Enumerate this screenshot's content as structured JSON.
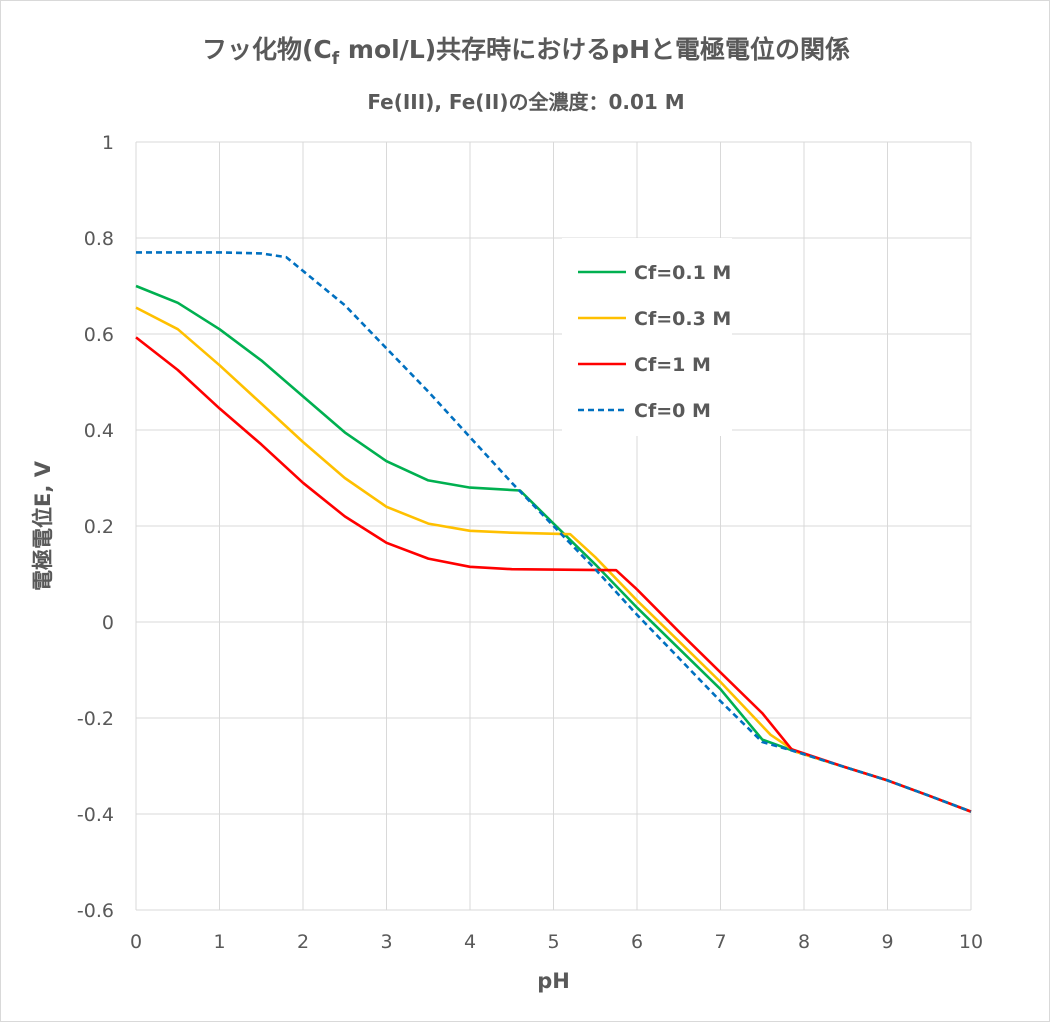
{
  "chart_data": {
    "type": "line",
    "title": "フッ化物(C",
    "title_sub": "f",
    "title_rest": " mol/L)共存時におけるpHと電極電位の関係",
    "subtitle": "Fe(III), Fe(II)の全濃度：0.01 M",
    "xlabel": "pH",
    "ylabel": "電極電位E, V",
    "xlim": [
      0,
      10
    ],
    "ylim": [
      -0.6,
      1
    ],
    "xticks": [
      "0",
      "1",
      "2",
      "3",
      "4",
      "5",
      "6",
      "7",
      "8",
      "9",
      "10"
    ],
    "yticks": [
      "1",
      "0.8",
      "0.6",
      "0.4",
      "0.2",
      "0",
      "-0.2",
      "-0.4",
      "-0.6"
    ],
    "legend_position": "upper-right-inside",
    "series": [
      {
        "name": "Cf=0.1 M",
        "color": "#00b050",
        "dash": "solid",
        "points": [
          [
            0,
            0.7
          ],
          [
            0.5,
            0.665
          ],
          [
            1,
            0.61
          ],
          [
            1.5,
            0.545
          ],
          [
            2,
            0.47
          ],
          [
            2.5,
            0.395
          ],
          [
            3,
            0.335
          ],
          [
            3.5,
            0.295
          ],
          [
            4,
            0.28
          ],
          [
            4.6,
            0.274
          ],
          [
            5,
            0.205
          ],
          [
            5.5,
            0.12
          ],
          [
            6,
            0.03
          ],
          [
            6.5,
            -0.055
          ],
          [
            7,
            -0.14
          ],
          [
            7.5,
            -0.245
          ],
          [
            7.9,
            -0.27
          ],
          [
            8.5,
            -0.303
          ],
          [
            9,
            -0.33
          ],
          [
            9.5,
            -0.362
          ],
          [
            10,
            -0.395
          ]
        ]
      },
      {
        "name": "Cf=0.3 M",
        "color": "#ffc000",
        "dash": "solid",
        "points": [
          [
            0,
            0.655
          ],
          [
            0.5,
            0.61
          ],
          [
            1,
            0.535
          ],
          [
            1.5,
            0.455
          ],
          [
            2,
            0.375
          ],
          [
            2.5,
            0.3
          ],
          [
            3,
            0.24
          ],
          [
            3.5,
            0.205
          ],
          [
            4,
            0.19
          ],
          [
            4.5,
            0.186
          ],
          [
            5.2,
            0.183
          ],
          [
            5.5,
            0.135
          ],
          [
            6,
            0.045
          ],
          [
            6.5,
            -0.04
          ],
          [
            7,
            -0.125
          ],
          [
            7.6,
            -0.235
          ],
          [
            7.9,
            -0.27
          ],
          [
            8.5,
            -0.303
          ],
          [
            9,
            -0.33
          ],
          [
            9.5,
            -0.362
          ],
          [
            10,
            -0.395
          ]
        ]
      },
      {
        "name": "Cf=1 M",
        "color": "#ff0000",
        "dash": "solid",
        "points": [
          [
            0,
            0.593
          ],
          [
            0.5,
            0.525
          ],
          [
            1,
            0.445
          ],
          [
            1.5,
            0.37
          ],
          [
            2,
            0.29
          ],
          [
            2.5,
            0.22
          ],
          [
            3,
            0.165
          ],
          [
            3.5,
            0.132
          ],
          [
            4,
            0.115
          ],
          [
            4.5,
            0.11
          ],
          [
            5.75,
            0.108
          ],
          [
            6,
            0.068
          ],
          [
            6.5,
            -0.02
          ],
          [
            7,
            -0.105
          ],
          [
            7.5,
            -0.19
          ],
          [
            7.85,
            -0.265
          ],
          [
            8.5,
            -0.303
          ],
          [
            9,
            -0.33
          ],
          [
            9.5,
            -0.362
          ],
          [
            10,
            -0.395
          ]
        ]
      },
      {
        "name": "Cf=0 M",
        "color": "#0070c0",
        "dash": "dashed",
        "points": [
          [
            0,
            0.77
          ],
          [
            1,
            0.77
          ],
          [
            1.5,
            0.768
          ],
          [
            1.8,
            0.76
          ],
          [
            2.5,
            0.66
          ],
          [
            3,
            0.57
          ],
          [
            3.5,
            0.48
          ],
          [
            4,
            0.385
          ],
          [
            4.5,
            0.29
          ],
          [
            5,
            0.2
          ],
          [
            5.5,
            0.11
          ],
          [
            6,
            0.015
          ],
          [
            6.5,
            -0.075
          ],
          [
            7,
            -0.165
          ],
          [
            7.5,
            -0.25
          ],
          [
            7.9,
            -0.27
          ],
          [
            8.5,
            -0.303
          ],
          [
            9,
            -0.33
          ],
          [
            9.5,
            -0.362
          ],
          [
            10,
            -0.395
          ]
        ]
      }
    ]
  }
}
